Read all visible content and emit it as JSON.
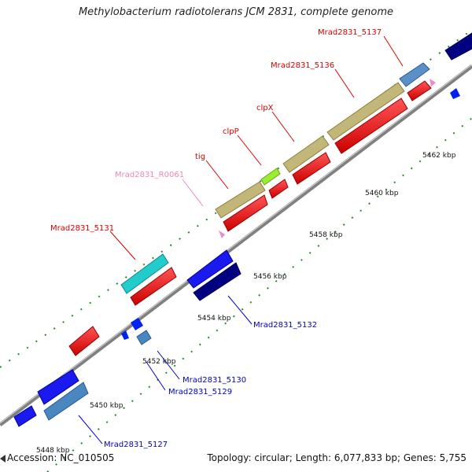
{
  "title": "Methylobacterium radiotolerans JCM 2831, complete genome",
  "footer": {
    "accession": "Accession: NC_010505",
    "summary": "Topology: circular; Length: 6,077,833 bp; Genes: 5,755"
  },
  "colors": {
    "backbone": "#9a9a9a",
    "tick": "#1a7a1a",
    "label_red": "#dd0000",
    "label_blue": "#0000cc",
    "label_pink": "#ee88bb"
  },
  "kbp_labels": [
    {
      "text": "5448 kbp"
    },
    {
      "text": "5450 kbp"
    },
    {
      "text": "5452 kbp"
    },
    {
      "text": "5454 kbp"
    },
    {
      "text": "5456 kbp"
    },
    {
      "text": "5458 kbp"
    },
    {
      "text": "5460 kbp"
    },
    {
      "text": "5462 kbp"
    }
  ],
  "gene_labels": [
    {
      "text": "Mrad2831_5137",
      "color": "red"
    },
    {
      "text": "Mrad2831_5136",
      "color": "red"
    },
    {
      "text": "clpX",
      "color": "red"
    },
    {
      "text": "clpP",
      "color": "red"
    },
    {
      "text": "tig",
      "color": "red"
    },
    {
      "text": "Mrad2831_R0061",
      "color": "pink"
    },
    {
      "text": "Mrad2831_5131",
      "color": "red"
    },
    {
      "text": "Mrad2831_5132",
      "color": "blue"
    },
    {
      "text": "Mrad2831_5130",
      "color": "blue"
    },
    {
      "text": "Mrad2831_5129",
      "color": "blue"
    },
    {
      "text": "Mrad2831_5127",
      "color": "blue"
    }
  ],
  "genes": [
    {
      "name": "Mrad2831_5137",
      "type": "cds",
      "strand": "+",
      "color": "#5a8fc8"
    },
    {
      "name": "Mrad2831_5136",
      "type": "cds",
      "strand": "+",
      "color": "#c2b678"
    },
    {
      "name": "clpX",
      "type": "cds",
      "strand": "+",
      "color": "#c2b678"
    },
    {
      "name": "clpP",
      "type": "cds",
      "strand": "+",
      "color": "#99ee33"
    },
    {
      "name": "tig",
      "type": "cds",
      "strand": "+",
      "color": "#c2b678"
    },
    {
      "name": "Mrad2831_5131",
      "type": "cds",
      "strand": "+",
      "color": "#22cccc"
    },
    {
      "name": "Mrad2831_5132",
      "type": "cds",
      "strand": "-",
      "color": "#000080"
    },
    {
      "name": "Mrad2831_5127",
      "type": "cds",
      "strand": "-",
      "color": "#4a86c0"
    }
  ]
}
